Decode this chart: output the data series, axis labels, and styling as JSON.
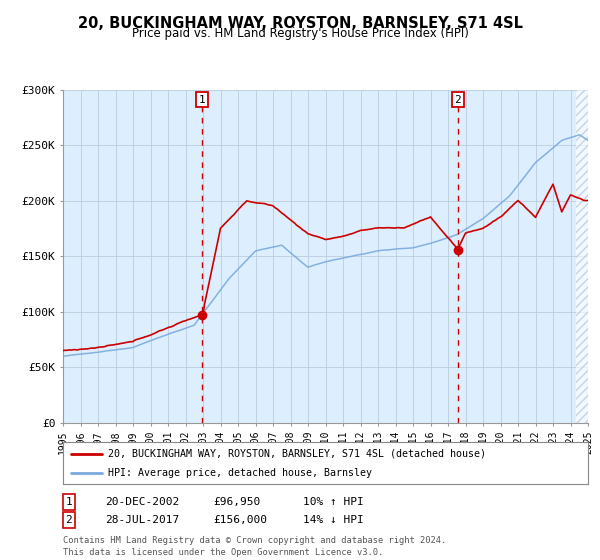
{
  "title": "20, BUCKINGHAM WAY, ROYSTON, BARNSLEY, S71 4SL",
  "subtitle": "Price paid vs. HM Land Registry's House Price Index (HPI)",
  "x_start_year": 1995,
  "x_end_year": 2025,
  "y_min": 0,
  "y_max": 300000,
  "y_ticks": [
    0,
    50000,
    100000,
    150000,
    200000,
    250000,
    300000
  ],
  "y_tick_labels": [
    "£0",
    "£50K",
    "£100K",
    "£150K",
    "£200K",
    "£250K",
    "£300K"
  ],
  "sale1_date_year": 2002.96,
  "sale1_price": 96950,
  "sale2_date_year": 2017.56,
  "sale2_price": 156000,
  "sale1_label": "1",
  "sale2_label": "2",
  "legend_line1": "20, BUCKINGHAM WAY, ROYSTON, BARNSLEY, S71 4SL (detached house)",
  "legend_line2": "HPI: Average price, detached house, Barnsley",
  "table_row1": [
    "1",
    "20-DEC-2002",
    "£96,950",
    "10% ↑ HPI"
  ],
  "table_row2": [
    "2",
    "28-JUL-2017",
    "£156,000",
    "14% ↓ HPI"
  ],
  "footer": "Contains HM Land Registry data © Crown copyright and database right 2024.\nThis data is licensed under the Open Government Licence v3.0.",
  "hpi_color": "#7aaadd",
  "price_color": "#cc0000",
  "bg_color": "#ddeeff",
  "plot_bg": "#ffffff",
  "grid_color": "#bbccdd",
  "vline_color": "#cc0000",
  "hatch_color": "#aabbcc"
}
